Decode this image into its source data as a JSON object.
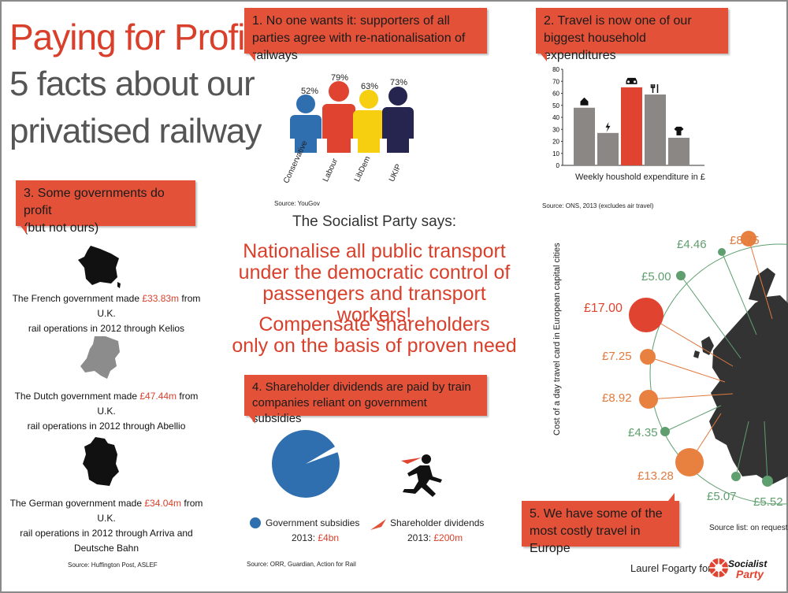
{
  "header": {
    "title_line1": "Paying for Profit:",
    "title_line2": "5 facts about our",
    "title_line3": "privatised railway"
  },
  "fact1": {
    "banner": "1. No one wants it: supporters of all parties agree with re-nationalisation of railways",
    "source": "Source: YouGov",
    "parties": [
      {
        "name": "Conservative",
        "pct": "52%",
        "color": "#2f6fb0"
      },
      {
        "name": "Labour",
        "pct": "79%",
        "color": "#e0432f"
      },
      {
        "name": "LibDem",
        "pct": "63%",
        "color": "#f5cf10"
      },
      {
        "name": "UKIP",
        "pct": "73%",
        "color": "#25254f"
      }
    ]
  },
  "fact2": {
    "banner": "2. Travel is now one of our biggest household expenditures",
    "source": "Source: ONS, 2013 (excludes air travel)",
    "xlabel": "Weekly houshold expenditure in £"
  },
  "chart_data": {
    "type": "bar",
    "xlabel": "Weekly houshold expenditure in £",
    "ylim": [
      0,
      80
    ],
    "yticks": [
      "0",
      "10",
      "20",
      "30",
      "40",
      "50",
      "60",
      "70",
      "80"
    ],
    "categories": [
      "house-icon",
      "bolt-icon",
      "car-icon",
      "cutlery-icon",
      "tshirt-icon"
    ],
    "values": [
      48,
      27,
      65,
      59,
      23
    ],
    "colors": [
      "#8a8785",
      "#8a8785",
      "#e0432f",
      "#8a8785",
      "#8a8785"
    ]
  },
  "fact3": {
    "banner_line1": "3. Some governments do profit",
    "banner_line2": "(but not ours)",
    "source": "Source: Huffington Post, ASLEF",
    "items": [
      {
        "pre": "The French government made ",
        "amount": "£33.83m",
        "post": " from U.K.",
        "line2": "rail operations in 2012 through Kelios"
      },
      {
        "pre": "The Dutch government made ",
        "amount": "£47.44m",
        "post": " from U.K.",
        "line2": "rail operations in 2012 through Abellio"
      },
      {
        "pre": "The German government made ",
        "amount": "£34.04m",
        "post": " from U.K.",
        "line2": "rail operations in 2012 through Arriva and",
        "line3": "Deutsche Bahn"
      }
    ]
  },
  "socialist": {
    "heading": "The Socialist Party says:",
    "demand1_l1": "Nationalise all public transport",
    "demand1_l2": "under the democratic control of",
    "demand1_l3": "passengers and transport workers!",
    "demand2_l1": "Compensate shareholders",
    "demand2_l2": "only on the basis of proven need"
  },
  "fact4": {
    "banner_l1": "4. Shareholder dividends are paid by train",
    "banner_l2": "companies reliant on government subsidies",
    "source": "Source: ORR, Guardian, Action for Rail",
    "legend1": "Government subsidies",
    "legend1_year": "2013: ",
    "legend1_value": "£4bn",
    "legend2": "Shareholder dividends",
    "legend2_year": "2013: ",
    "legend2_value": "£200m"
  },
  "fact5": {
    "axis_label": "Cost of a day travel card in European capital cities",
    "banner_l1": "5.  We have some of the",
    "banner_l2": "most costly travel in Europe",
    "source": "Source list:  on request",
    "prices": [
      "£8.75",
      "£4.46",
      "£5.00",
      "£17.00",
      "£7.25",
      "£8.92",
      "£4.35",
      "£13.28",
      "£5.07",
      "£5.52"
    ]
  },
  "footer": {
    "credit": "Laurel Fogarty for",
    "logo_text": "Socialist Party"
  }
}
